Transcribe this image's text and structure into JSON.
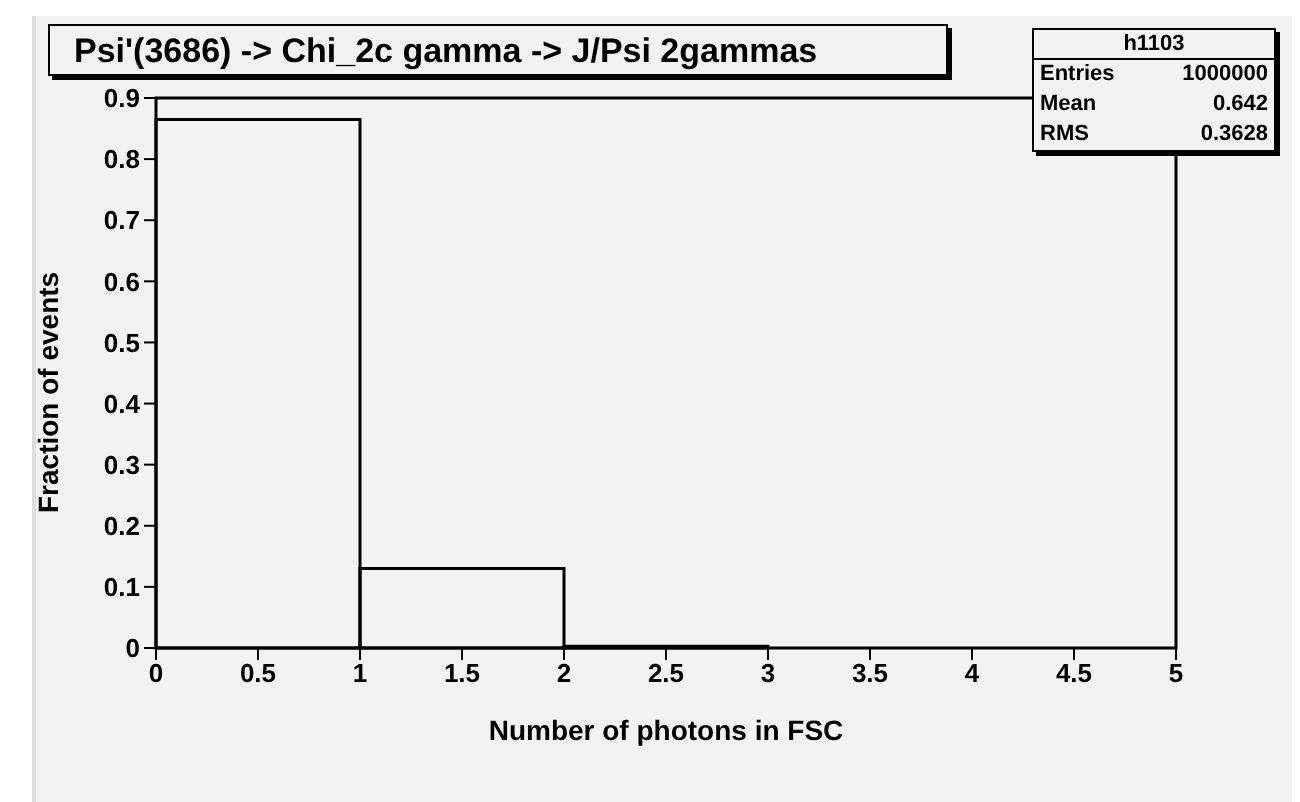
{
  "chart_data": {
    "type": "histogram",
    "title": "Psi'(3686) -> Chi_2c gamma -> J/Psi 2gammas",
    "xlabel": "Number of photons in FSC",
    "ylabel": "Fraction of events",
    "bins": [
      0,
      1,
      2,
      3,
      4,
      5
    ],
    "values": [
      0.865,
      0.13,
      0.003,
      0,
      0
    ],
    "color": "#000000",
    "xlim": [
      0,
      5
    ],
    "xticks": [
      0,
      0.5,
      1,
      1.5,
      2,
      2.5,
      3,
      3.5,
      4,
      4.5,
      5
    ],
    "ylim": [
      0,
      0.9
    ],
    "yticks": [
      0,
      0.1,
      0.2,
      0.3,
      0.4,
      0.5,
      0.6,
      0.7,
      0.8,
      0.9
    ],
    "annotations": [
      "h1103",
      "Entries",
      "1000000",
      "Mean",
      "0.642",
      "RMS",
      "0.3628"
    ]
  }
}
